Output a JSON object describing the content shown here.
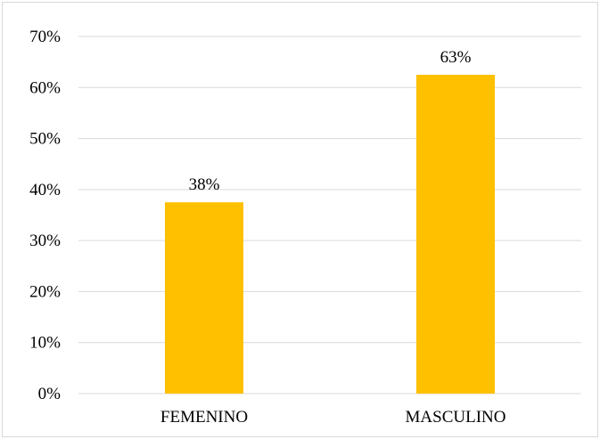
{
  "chart_data": {
    "type": "bar",
    "title": "",
    "xlabel": "",
    "ylabel": "",
    "categories": [
      "FEMENINO",
      "MASCULINO"
    ],
    "values": [
      37.5,
      62.5
    ],
    "data_labels": [
      "38%",
      "63%"
    ],
    "ylim": [
      0,
      70
    ],
    "y_ticks": [
      0,
      10,
      20,
      30,
      40,
      50,
      60,
      70
    ],
    "y_tick_labels": [
      "0%",
      "10%",
      "20%",
      "30%",
      "40%",
      "50%",
      "60%",
      "70%"
    ],
    "grid": true,
    "legend": "none",
    "bar_color": "#FFC000",
    "grid_color": "#D9D9D9"
  }
}
